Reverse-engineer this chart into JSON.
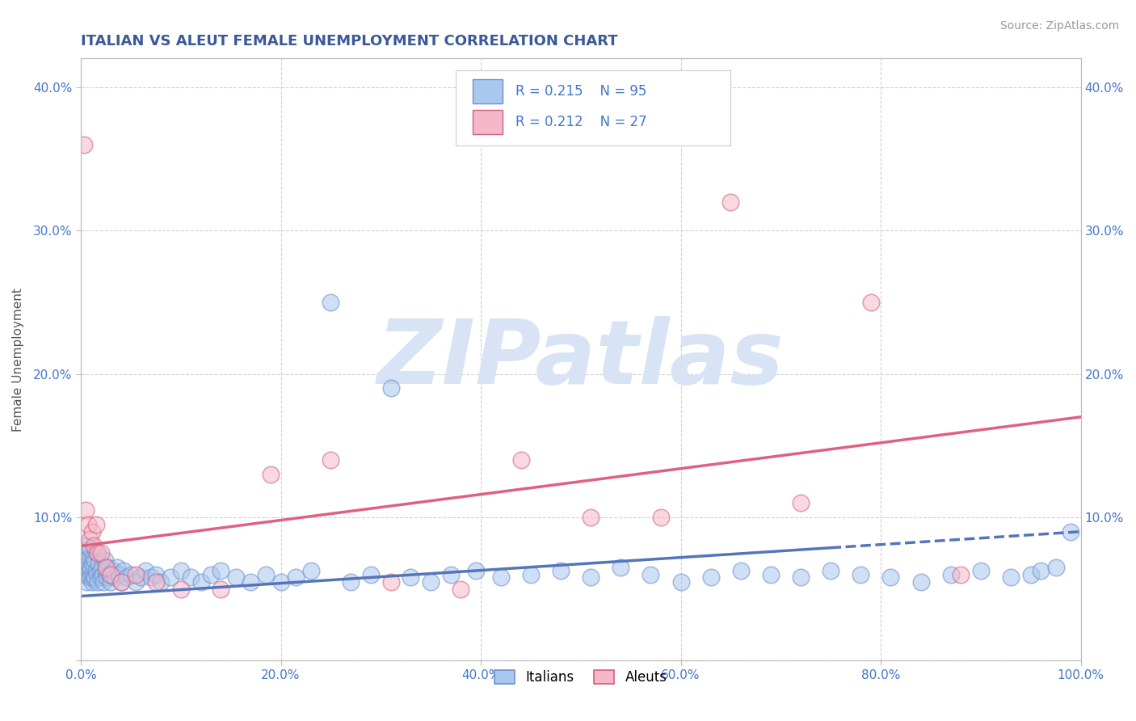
{
  "title": "ITALIAN VS ALEUT FEMALE UNEMPLOYMENT CORRELATION CHART",
  "source": "Source: ZipAtlas.com",
  "ylabel": "Female Unemployment",
  "xlim": [
    0,
    1.0
  ],
  "ylim": [
    0,
    0.42
  ],
  "xticks": [
    0.0,
    0.2,
    0.4,
    0.6,
    0.8,
    1.0
  ],
  "xticklabels": [
    "0.0%",
    "20.0%",
    "40.0%",
    "60.0%",
    "80.0%",
    "100.0%"
  ],
  "yticks": [
    0.0,
    0.1,
    0.2,
    0.3,
    0.4
  ],
  "yticklabels": [
    "",
    "10.0%",
    "20.0%",
    "30.0%",
    "40.0%"
  ],
  "italian_color": "#A8C8F0",
  "aleut_color": "#F5B8C8",
  "italian_edge_color": "#7090C8",
  "aleut_edge_color": "#D06080",
  "italian_line_color": "#5575BB",
  "aleut_line_color": "#E06080",
  "legend_text_color": "#4477CC",
  "title_color": "#3B5998",
  "axis_label_color": "#555555",
  "tick_color": "#4477CC",
  "background_color": "#FFFFFF",
  "grid_color": "#CCCCCC",
  "watermark": "ZIPatlas",
  "watermark_color": "#D8E4F5",
  "italian_line_intercept": 0.045,
  "italian_line_slope": 0.045,
  "aleut_line_intercept": 0.08,
  "aleut_line_slope": 0.09,
  "italian_x": [
    0.003,
    0.004,
    0.005,
    0.005,
    0.006,
    0.006,
    0.007,
    0.007,
    0.008,
    0.008,
    0.009,
    0.009,
    0.01,
    0.01,
    0.01,
    0.011,
    0.011,
    0.012,
    0.012,
    0.013,
    0.013,
    0.014,
    0.014,
    0.015,
    0.015,
    0.016,
    0.017,
    0.018,
    0.019,
    0.02,
    0.021,
    0.022,
    0.023,
    0.024,
    0.025,
    0.026,
    0.027,
    0.028,
    0.03,
    0.032,
    0.034,
    0.036,
    0.038,
    0.04,
    0.043,
    0.046,
    0.05,
    0.055,
    0.06,
    0.065,
    0.07,
    0.075,
    0.08,
    0.09,
    0.1,
    0.11,
    0.12,
    0.13,
    0.14,
    0.155,
    0.17,
    0.185,
    0.2,
    0.215,
    0.23,
    0.25,
    0.27,
    0.29,
    0.31,
    0.33,
    0.35,
    0.37,
    0.395,
    0.42,
    0.45,
    0.48,
    0.51,
    0.54,
    0.57,
    0.6,
    0.63,
    0.66,
    0.69,
    0.72,
    0.75,
    0.78,
    0.81,
    0.84,
    0.87,
    0.9,
    0.93,
    0.95,
    0.96,
    0.975,
    0.99
  ],
  "italian_y": [
    0.065,
    0.075,
    0.06,
    0.08,
    0.055,
    0.07,
    0.065,
    0.072,
    0.058,
    0.068,
    0.062,
    0.071,
    0.059,
    0.065,
    0.078,
    0.055,
    0.068,
    0.06,
    0.072,
    0.057,
    0.065,
    0.07,
    0.058,
    0.063,
    0.075,
    0.06,
    0.055,
    0.068,
    0.062,
    0.058,
    0.065,
    0.06,
    0.055,
    0.07,
    0.063,
    0.058,
    0.065,
    0.06,
    0.055,
    0.063,
    0.058,
    0.065,
    0.06,
    0.055,
    0.063,
    0.058,
    0.06,
    0.055,
    0.058,
    0.063,
    0.058,
    0.06,
    0.055,
    0.058,
    0.063,
    0.058,
    0.055,
    0.06,
    0.063,
    0.058,
    0.055,
    0.06,
    0.055,
    0.058,
    0.063,
    0.25,
    0.055,
    0.06,
    0.19,
    0.058,
    0.055,
    0.06,
    0.063,
    0.058,
    0.06,
    0.063,
    0.058,
    0.065,
    0.06,
    0.055,
    0.058,
    0.063,
    0.06,
    0.058,
    0.063,
    0.06,
    0.058,
    0.055,
    0.06,
    0.063,
    0.058,
    0.06,
    0.063,
    0.065,
    0.09
  ],
  "aleut_x": [
    0.003,
    0.005,
    0.007,
    0.009,
    0.011,
    0.013,
    0.015,
    0.017,
    0.02,
    0.025,
    0.03,
    0.04,
    0.055,
    0.075,
    0.1,
    0.14,
    0.19,
    0.25,
    0.31,
    0.38,
    0.44,
    0.51,
    0.58,
    0.65,
    0.72,
    0.79,
    0.88
  ],
  "aleut_y": [
    0.36,
    0.105,
    0.095,
    0.085,
    0.09,
    0.08,
    0.095,
    0.075,
    0.075,
    0.065,
    0.06,
    0.055,
    0.06,
    0.055,
    0.05,
    0.05,
    0.13,
    0.14,
    0.055,
    0.05,
    0.14,
    0.1,
    0.1,
    0.32,
    0.11,
    0.25,
    0.06
  ]
}
